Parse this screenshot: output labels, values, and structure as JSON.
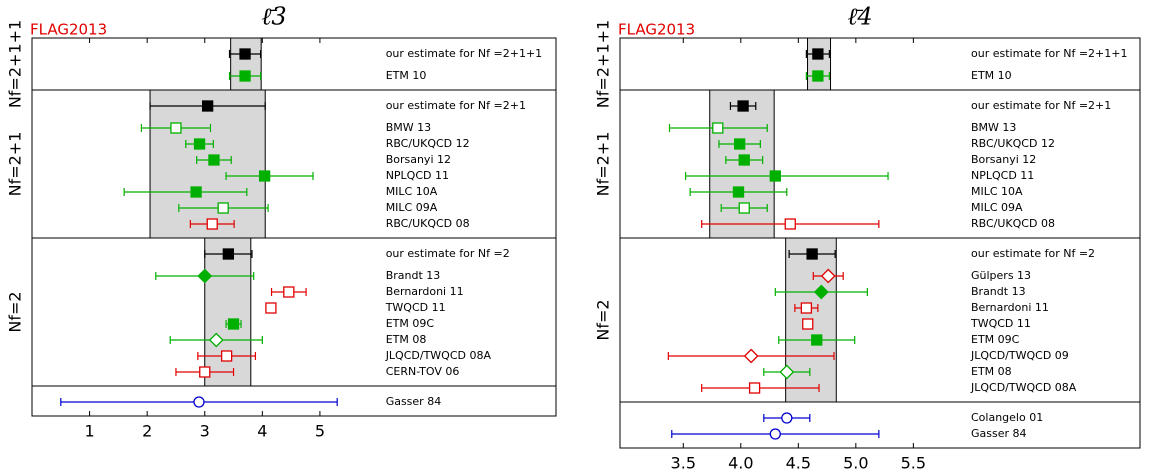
{
  "chart_data": [
    {
      "type": "forest",
      "title": "ℓ̄3",
      "tag": "FLAG2013",
      "xlim": [
        0,
        9.1
      ],
      "xticks": [
        1,
        2,
        3,
        4,
        5
      ],
      "groups": [
        {
          "label": "Nf=2+1+1",
          "band": [
            3.45,
            3.98
          ],
          "estimate": {
            "name": "our estimate for Nf =2+1+1",
            "value": 3.7,
            "error_minus": 0.27,
            "error_plus": 0.27,
            "color": "#000000",
            "marker": "square",
            "filled": true
          },
          "entries": [
            {
              "name": "ETM 10",
              "value": 3.7,
              "error_minus": 0.27,
              "error_plus": 0.27,
              "color": "#00b000",
              "marker": "square",
              "filled": true
            }
          ]
        },
        {
          "label": "Nf=2+1",
          "band": [
            2.05,
            4.05
          ],
          "estimate": {
            "name": "our estimate for Nf =2+1",
            "value": 3.05,
            "error_minus": 1.0,
            "error_plus": 1.0,
            "color": "#000000",
            "marker": "square",
            "filled": true
          },
          "entries": [
            {
              "name": "BMW 13",
              "value": 2.5,
              "error_minus": 0.6,
              "error_plus": 0.6,
              "color": "#00b000",
              "marker": "square",
              "filled": false
            },
            {
              "name": "RBC/UKQCD 12",
              "value": 2.91,
              "error_minus": 0.24,
              "error_plus": 0.24,
              "color": "#00b000",
              "marker": "square",
              "filled": true
            },
            {
              "name": "Borsanyi 12",
              "value": 3.16,
              "error_minus": 0.3,
              "error_plus": 0.3,
              "color": "#00b000",
              "marker": "square",
              "filled": true
            },
            {
              "name": "NPLQCD 11",
              "value": 4.04,
              "error_minus": 0.67,
              "error_plus": 0.84,
              "color": "#00b000",
              "marker": "square",
              "filled": true
            },
            {
              "name": "MILC 10A",
              "value": 2.85,
              "error_minus": 1.25,
              "error_plus": 0.88,
              "color": "#00b000",
              "marker": "square",
              "filled": true
            },
            {
              "name": "MILC 09A",
              "value": 3.32,
              "error_minus": 0.77,
              "error_plus": 0.78,
              "color": "#00b000",
              "marker": "square",
              "filled": false
            },
            {
              "name": "RBC/UKQCD 08",
              "value": 3.13,
              "error_minus": 0.38,
              "error_plus": 0.38,
              "color": "#e00000",
              "marker": "square",
              "filled": false
            }
          ]
        },
        {
          "label": "Nf=2",
          "band": [
            3.0,
            3.8
          ],
          "estimate": {
            "name": "our estimate for Nf =2",
            "value": 3.41,
            "error_minus": 0.41,
            "error_plus": 0.41,
            "color": "#000000",
            "marker": "square",
            "filled": true
          },
          "entries": [
            {
              "name": "Brandt 13",
              "value": 3.0,
              "error_minus": 0.85,
              "error_plus": 0.85,
              "color": "#00b000",
              "marker": "diamond",
              "filled": true
            },
            {
              "name": "Bernardoni 11",
              "value": 4.46,
              "error_minus": 0.3,
              "error_plus": 0.3,
              "color": "#e00000",
              "marker": "square",
              "filled": false
            },
            {
              "name": "TWQCD 11",
              "value": 4.149,
              "color": "#e00000",
              "marker": "square",
              "filled": false
            },
            {
              "name": "ETM 09C",
              "value": 3.5,
              "error_minus": 0.13,
              "error_plus": 0.13,
              "color": "#00b000",
              "marker": "square",
              "filled": true
            },
            {
              "name": "ETM 08",
              "value": 3.2,
              "error_minus": 0.8,
              "error_plus": 0.8,
              "color": "#00b000",
              "marker": "diamond",
              "filled": false
            },
            {
              "name": "JLQCD/TWQCD 08A",
              "value": 3.38,
              "error_minus": 0.5,
              "error_plus": 0.5,
              "color": "#e00000",
              "marker": "square",
              "filled": false
            },
            {
              "name": "CERN-TOV 06",
              "value": 3.0,
              "error_minus": 0.5,
              "error_plus": 0.5,
              "color": "#e00000",
              "marker": "square",
              "filled": false
            }
          ]
        },
        {
          "band": null,
          "entries": [
            {
              "name": "Gasser 84",
              "value": 2.9,
              "error_minus": 2.4,
              "error_plus": 2.4,
              "color": "#0000d0",
              "marker": "circle",
              "filled": false
            }
          ]
        }
      ]
    },
    {
      "type": "forest",
      "title": "ℓ̄4",
      "tag": "FLAG2013",
      "xlim": [
        2.95,
        7.47
      ],
      "xticks": [
        3.5,
        {
          "value": 4,
          "label": "4.0"
        },
        4.5,
        {
          "value": 5,
          "label": "5.0"
        },
        5.5
      ],
      "groups": [
        {
          "label": "Nf=2+1+1",
          "band": [
            4.58,
            4.78
          ],
          "estimate": {
            "name": "our estimate for Nf =2+1+1",
            "value": 4.67,
            "error_minus": 0.1,
            "error_plus": 0.1,
            "color": "#000000",
            "marker": "square",
            "filled": true
          },
          "entries": [
            {
              "name": "ETM 10",
              "value": 4.67,
              "error_minus": 0.1,
              "error_plus": 0.1,
              "color": "#00b000",
              "marker": "square",
              "filled": true
            }
          ]
        },
        {
          "label": "Nf=2+1",
          "band": [
            3.73,
            4.29
          ],
          "estimate": {
            "name": "our estimate for Nf =2+1",
            "value": 4.02,
            "error_minus": 0.11,
            "error_plus": 0.11,
            "color": "#000000",
            "marker": "square",
            "filled": true
          },
          "entries": [
            {
              "name": "BMW 13",
              "value": 3.8,
              "error_minus": 0.42,
              "error_plus": 0.43,
              "color": "#00b000",
              "marker": "square",
              "filled": false
            },
            {
              "name": "RBC/UKQCD 12",
              "value": 3.99,
              "error_minus": 0.18,
              "error_plus": 0.18,
              "color": "#00b000",
              "marker": "square",
              "filled": true
            },
            {
              "name": "Borsanyi 12",
              "value": 4.03,
              "error_minus": 0.16,
              "error_plus": 0.16,
              "color": "#00b000",
              "marker": "square",
              "filled": true
            },
            {
              "name": "NPLQCD 11",
              "value": 4.3,
              "error_minus": 0.78,
              "error_plus": 0.98,
              "color": "#00b000",
              "marker": "square",
              "filled": true
            },
            {
              "name": "MILC 10A",
              "value": 3.98,
              "error_minus": 0.42,
              "error_plus": 0.42,
              "color": "#00b000",
              "marker": "square",
              "filled": true
            },
            {
              "name": "MILC 09A",
              "value": 4.03,
              "error_minus": 0.2,
              "error_plus": 0.2,
              "color": "#00b000",
              "marker": "square",
              "filled": false
            },
            {
              "name": "RBC/UKQCD 08",
              "value": 4.43,
              "error_minus": 0.77,
              "error_plus": 0.77,
              "color": "#e00000",
              "marker": "square",
              "filled": false
            }
          ]
        },
        {
          "label": "Nf=2",
          "band": [
            4.39,
            4.83
          ],
          "estimate": {
            "name": "our estimate for Nf =2",
            "value": 4.62,
            "error_minus": 0.2,
            "error_plus": 0.2,
            "color": "#000000",
            "marker": "square",
            "filled": true
          },
          "entries": [
            {
              "name": "Gülpers 13",
              "value": 4.76,
              "error_minus": 0.13,
              "error_plus": 0.13,
              "color": "#e00000",
              "marker": "diamond",
              "filled": false
            },
            {
              "name": "Brandt 13",
              "value": 4.7,
              "error_minus": 0.4,
              "error_plus": 0.4,
              "color": "#00b000",
              "marker": "diamond",
              "filled": true
            },
            {
              "name": "Bernardoni 11",
              "value": 4.57,
              "error_minus": 0.1,
              "error_plus": 0.1,
              "color": "#e00000",
              "marker": "square",
              "filled": false
            },
            {
              "name": "TWQCD 11",
              "value": 4.582,
              "color": "#e00000",
              "marker": "square",
              "filled": false
            },
            {
              "name": "ETM 09C",
              "value": 4.66,
              "error_minus": 0.33,
              "error_plus": 0.33,
              "color": "#00b000",
              "marker": "square",
              "filled": true
            },
            {
              "name": "JLQCD/TWQCD 09",
              "value": 4.09,
              "error_minus": 0.72,
              "error_plus": 0.72,
              "color": "#e00000",
              "marker": "diamond",
              "filled": false
            },
            {
              "name": "ETM 08",
              "value": 4.4,
              "error_minus": 0.2,
              "error_plus": 0.2,
              "color": "#00b000",
              "marker": "diamond",
              "filled": false
            },
            {
              "name": "JLQCD/TWQCD 08A",
              "value": 4.12,
              "error_minus": 0.46,
              "error_plus": 0.56,
              "color": "#e00000",
              "marker": "square",
              "filled": false
            }
          ]
        },
        {
          "band": null,
          "entries": [
            {
              "name": "Colangelo 01",
              "value": 4.4,
              "error_minus": 0.2,
              "error_plus": 0.2,
              "color": "#0000d0",
              "marker": "circle",
              "filled": false
            },
            {
              "name": "Gasser 84",
              "value": 4.3,
              "error_minus": 0.9,
              "error_plus": 0.9,
              "color": "#0000d0",
              "marker": "circle",
              "filled": false
            }
          ]
        }
      ]
    }
  ]
}
